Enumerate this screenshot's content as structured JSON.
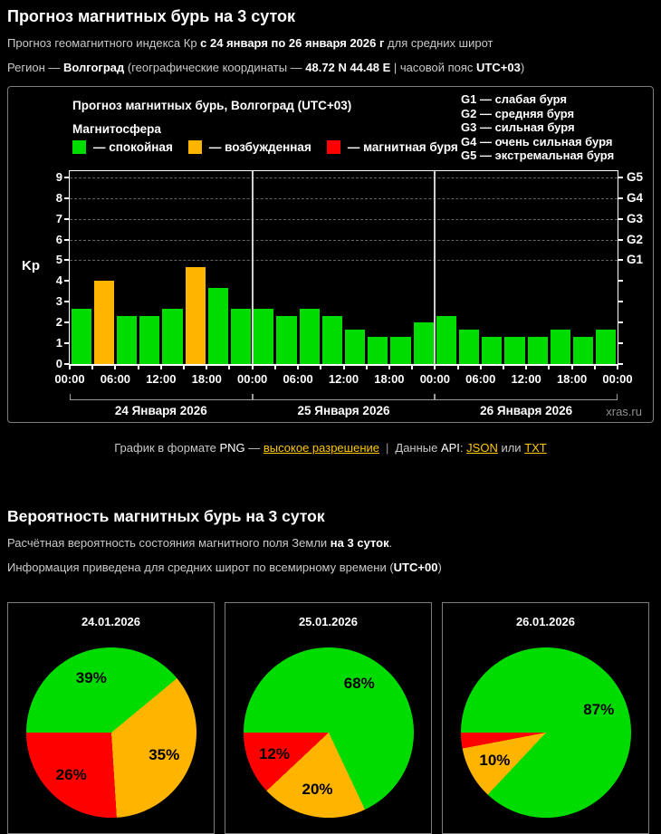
{
  "colors": {
    "quiet": "#00dc00",
    "excited": "#ffb400",
    "storm": "#ff0000",
    "link": "#ffc800"
  },
  "section1": {
    "title": "Прогноз магнитных бурь на 3 суток",
    "subtitle": {
      "prefix": "Прогноз геомагнитного индекса Кр ",
      "bold": "с 24 января по 26 января 2026 г",
      "suffix": " для средних широт"
    },
    "region": {
      "prefix": "Регион — ",
      "name": "Волгоград",
      "mid": " (географические координаты — ",
      "coords": "48.72 N 44.48 E",
      "mid2": " | часовой пояс ",
      "tz": "UTC+03",
      "suffix": ")"
    }
  },
  "links": {
    "prefix": "График в формате ",
    "png": "PNG",
    "dash": " — ",
    "hires_link": "высокое разрешение",
    "separator": "|",
    "api_prefix": "Данные ",
    "api": "API",
    "colon": ": ",
    "json_link": "JSON",
    "or_text": " или ",
    "txt_link": "TXT"
  },
  "section2": {
    "title": "Вероятность магнитных бурь на 3 суток",
    "line1": {
      "prefix": "Расчётная вероятность состояния магнитного поля Земли ",
      "bold": "на 3 суток",
      "suffix": "."
    },
    "line2": {
      "prefix": "Информация приведена для средних широт по всемирному времени (",
      "bold": "UTC+00",
      "suffix": ")"
    }
  },
  "chart_data": [
    {
      "type": "bar",
      "title": "Прогноз магнитных бурь, Волгоград (UTC+03)",
      "legend_title": "Магнитосфера",
      "legend": [
        {
          "key": "quiet",
          "label": "— спокойная"
        },
        {
          "key": "excited",
          "label": "— возбужденная"
        },
        {
          "key": "storm",
          "label": "— магнитная буря"
        }
      ],
      "g_scale": [
        "G1 — слабая буря",
        "G2 — средняя буря",
        "G3 — сильная буря",
        "G4 — очень сильная буря",
        "G5 — экстремальная буря"
      ],
      "ylabel": "Kp",
      "ylim": [
        0,
        9.3
      ],
      "yticks": [
        0,
        1,
        2,
        3,
        4,
        5,
        6,
        7,
        8,
        9
      ],
      "gridlines_at": [
        5,
        6,
        7,
        8,
        9
      ],
      "right_labels": [
        {
          "value": 5,
          "label": "G1"
        },
        {
          "value": 6,
          "label": "G2"
        },
        {
          "value": 7,
          "label": "G3"
        },
        {
          "value": 8,
          "label": "G4"
        },
        {
          "value": 9,
          "label": "G5"
        }
      ],
      "x_tick_labels": [
        "00:00",
        "06:00",
        "12:00",
        "18:00",
        "00:00",
        "06:00",
        "12:00",
        "18:00",
        "00:00",
        "06:00",
        "12:00",
        "18:00",
        "00:00"
      ],
      "day_labels": [
        "24 Января 2026",
        "25 Января 2026",
        "26 Января 2026"
      ],
      "hours_per_bar": 3,
      "values": [
        2.67,
        4,
        2.33,
        2.33,
        2.67,
        4.67,
        3.67,
        2.67,
        2.67,
        2.33,
        2.67,
        2.33,
        1.67,
        1.33,
        1.33,
        2,
        2.33,
        1.67,
        1.33,
        1.33,
        1.33,
        1.67,
        1.33,
        1.67
      ],
      "thresholds": {
        "excited": 4,
        "storm": 5
      },
      "watermark": "xras.ru"
    },
    {
      "type": "pie",
      "title": "24.01.2026",
      "slices": [
        {
          "key": "quiet",
          "value": 39,
          "label": "39%"
        },
        {
          "key": "excited",
          "value": 35,
          "label": "35%"
        },
        {
          "key": "storm",
          "value": 26,
          "label": "26%"
        }
      ]
    },
    {
      "type": "pie",
      "title": "25.01.2026",
      "slices": [
        {
          "key": "quiet",
          "value": 68,
          "label": "68%"
        },
        {
          "key": "excited",
          "value": 20,
          "label": "20%"
        },
        {
          "key": "storm",
          "value": 12,
          "label": "12%"
        }
      ]
    },
    {
      "type": "pie",
      "title": "26.01.2026",
      "slices": [
        {
          "key": "quiet",
          "value": 87,
          "label": "87%"
        },
        {
          "key": "excited",
          "value": 10,
          "label": "10%"
        },
        {
          "key": "storm",
          "value": 3,
          "label": null
        }
      ]
    }
  ]
}
